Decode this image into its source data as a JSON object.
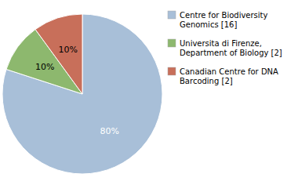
{
  "chart_data": {
    "type": "pie",
    "categories": [
      "Centre for Biodiversity\nGenomics [16]",
      "Universita di Firenze,\nDepartment of Biology [2]",
      "Canadian Centre for DNA\nBarcoding [2]"
    ],
    "values": [
      80,
      10,
      10
    ],
    "value_labels": [
      "80%",
      "10%",
      "10%"
    ],
    "colors": [
      "#a8bfd8",
      "#8db86e",
      "#c86f5a"
    ],
    "data_labels": true,
    "legend": "right"
  }
}
